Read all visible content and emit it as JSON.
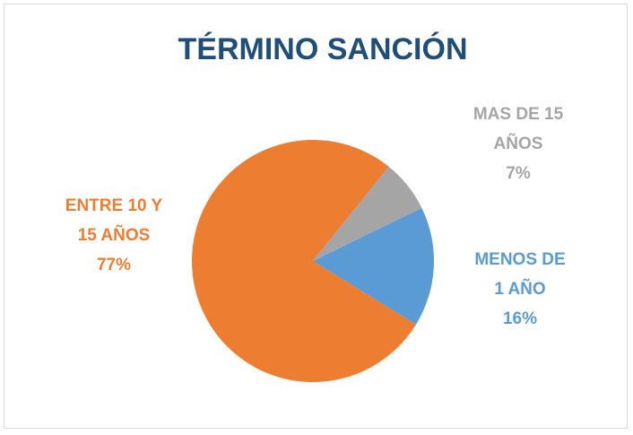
{
  "chart_data": {
    "type": "pie",
    "title": "TÉRMINO SANCIÓN",
    "categories": [
      "MENOS DE 1 AÑO",
      "ENTRE 10 Y 15 AÑOS",
      "MAS DE 15 AÑOS"
    ],
    "values": [
      16,
      77,
      7
    ],
    "value_labels": [
      "16%",
      "77%",
      "7%"
    ],
    "colors": [
      "#5b9bd5",
      "#ed7d31",
      "#a5a5a5"
    ]
  }
}
